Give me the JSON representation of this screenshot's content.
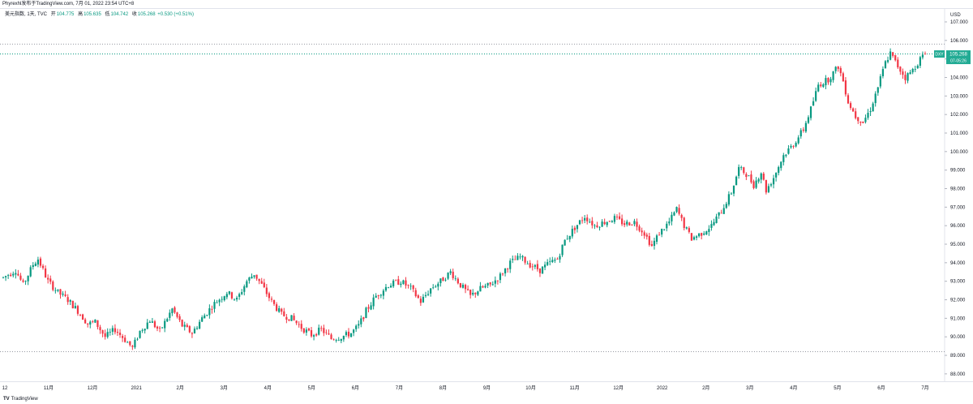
{
  "header": {
    "text": "Phyrexhl发布于TradingView.com, 7月 01, 2022 23:54 UTC+8"
  },
  "legend": {
    "title": "美元指数, 1天, TVC",
    "open_label": "开",
    "open_value": "104.775",
    "high_label": "高",
    "high_value": "105.635",
    "low_label": "低",
    "low_value": "104.742",
    "close_label": "收",
    "close_value": "105.268",
    "change_value": "+0.530 (+0.51%)"
  },
  "badge": {
    "symbol": "DXY",
    "price": "105.268",
    "date": "07-05:26"
  },
  "footer": {
    "logo": "TV",
    "text": "TradingView"
  },
  "colors": {
    "up": "#089981",
    "down": "#f23645",
    "badge": "#22ab94"
  },
  "chart_data": {
    "type": "candlestick",
    "y_unit_label": "USD",
    "ylim": [
      87.6,
      107.7
    ],
    "y_ticks": [
      "88.000",
      "89.000",
      "90.000",
      "91.000",
      "92.000",
      "93.000",
      "94.000",
      "95.000",
      "96.000",
      "97.000",
      "98.000",
      "99.000",
      "100.000",
      "101.000",
      "102.000",
      "103.000",
      "104.000",
      "105.000",
      "106.000",
      "107.000"
    ],
    "x_ticks": [
      "12",
      "11月",
      "12月",
      "2021",
      "2月",
      "3月",
      "4月",
      "5月",
      "6月",
      "7月",
      "8月",
      "9月",
      "10月",
      "11月",
      "12月",
      "2022",
      "2月",
      "3月",
      "4月",
      "5月",
      "6月",
      "7月"
    ],
    "last_price": 105.268,
    "dotted_levels": [
      105.8,
      89.2
    ],
    "price_path": [
      [
        0,
        93.2
      ],
      [
        5,
        93.6
      ],
      [
        8,
        92.8
      ],
      [
        12,
        93.9
      ],
      [
        14,
        94.2
      ],
      [
        18,
        93.0
      ],
      [
        22,
        92.4
      ],
      [
        26,
        92.0
      ],
      [
        30,
        91.4
      ],
      [
        34,
        90.7
      ],
      [
        37,
        90.8
      ],
      [
        41,
        90.0
      ],
      [
        45,
        90.4
      ],
      [
        50,
        89.7
      ],
      [
        52,
        89.4
      ],
      [
        55,
        90.3
      ],
      [
        59,
        90.9
      ],
      [
        63,
        90.3
      ],
      [
        68,
        91.5
      ],
      [
        72,
        90.6
      ],
      [
        76,
        90.2
      ],
      [
        80,
        91.0
      ],
      [
        85,
        91.8
      ],
      [
        90,
        92.4
      ],
      [
        94,
        92.0
      ],
      [
        98,
        93.0
      ],
      [
        101,
        93.4
      ],
      [
        104,
        92.8
      ],
      [
        108,
        91.9
      ],
      [
        112,
        91.2
      ],
      [
        116,
        91.0
      ],
      [
        120,
        90.5
      ],
      [
        124,
        90.1
      ],
      [
        128,
        90.4
      ],
      [
        132,
        89.9
      ],
      [
        136,
        90.0
      ],
      [
        140,
        90.2
      ],
      [
        143,
        90.6
      ],
      [
        146,
        91.4
      ],
      [
        150,
        92.2
      ],
      [
        155,
        92.8
      ],
      [
        160,
        93.0
      ],
      [
        164,
        92.6
      ],
      [
        168,
        91.9
      ],
      [
        172,
        92.6
      ],
      [
        176,
        93.0
      ],
      [
        180,
        93.5
      ],
      [
        184,
        92.8
      ],
      [
        188,
        92.2
      ],
      [
        192,
        92.6
      ],
      [
        196,
        92.8
      ],
      [
        200,
        93.3
      ],
      [
        204,
        94.0
      ],
      [
        208,
        94.3
      ],
      [
        212,
        93.9
      ],
      [
        216,
        93.6
      ],
      [
        220,
        94.0
      ],
      [
        223,
        94.2
      ],
      [
        226,
        95.2
      ],
      [
        230,
        95.9
      ],
      [
        234,
        96.5
      ],
      [
        238,
        96.0
      ],
      [
        242,
        96.2
      ],
      [
        246,
        96.4
      ],
      [
        250,
        96.1
      ],
      [
        254,
        96.2
      ],
      [
        258,
        95.6
      ],
      [
        261,
        94.9
      ],
      [
        264,
        95.6
      ],
      [
        268,
        96.2
      ],
      [
        271,
        96.9
      ],
      [
        274,
        96.0
      ],
      [
        277,
        95.3
      ],
      [
        281,
        95.6
      ],
      [
        285,
        96.0
      ],
      [
        289,
        96.8
      ],
      [
        293,
        97.8
      ],
      [
        296,
        99.1
      ],
      [
        299,
        98.8
      ],
      [
        302,
        98.2
      ],
      [
        305,
        98.9
      ],
      [
        307,
        97.9
      ],
      [
        310,
        98.6
      ],
      [
        314,
        99.8
      ],
      [
        318,
        100.4
      ],
      [
        322,
        101.2
      ],
      [
        325,
        102.3
      ],
      [
        328,
        103.6
      ],
      [
        332,
        103.9
      ],
      [
        336,
        104.6
      ],
      [
        338,
        103.8
      ],
      [
        340,
        102.7
      ],
      [
        343,
        101.9
      ],
      [
        346,
        101.6
      ],
      [
        349,
        102.3
      ],
      [
        352,
        103.5
      ],
      [
        355,
        104.8
      ],
      [
        357,
        105.3
      ],
      [
        360,
        104.6
      ],
      [
        363,
        104.0
      ],
      [
        366,
        104.4
      ],
      [
        369,
        105.0
      ],
      [
        371,
        105.27
      ]
    ]
  }
}
